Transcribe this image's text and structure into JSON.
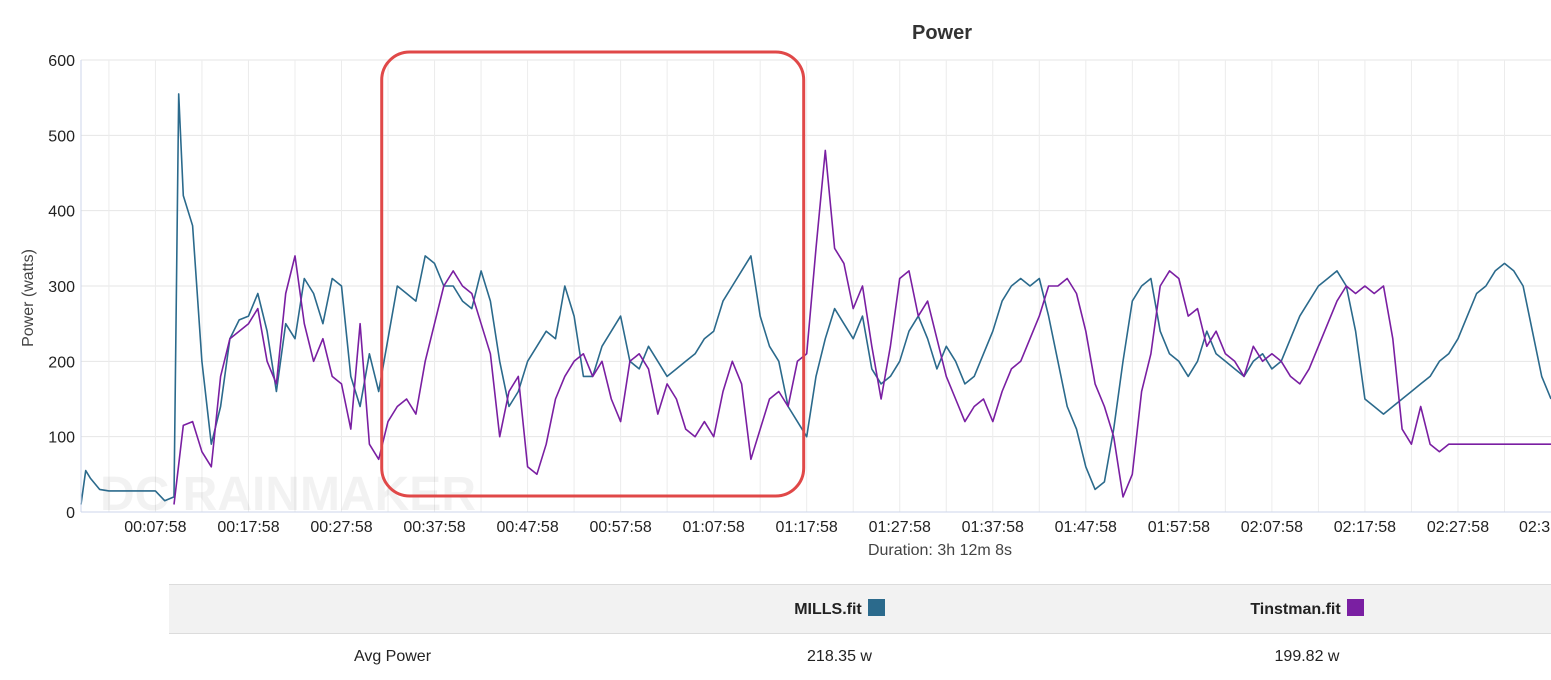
{
  "chart_data": {
    "type": "line",
    "title": "Power",
    "ylabel": "Power (watts)",
    "xlabel": "Duration: 3h 12m 8s",
    "ylim": [
      0,
      600
    ],
    "y_ticks": [
      "0",
      "100",
      "200",
      "300",
      "400",
      "500",
      "600"
    ],
    "x_ticks": [
      "00:07:58",
      "00:17:58",
      "00:27:58",
      "00:37:58",
      "00:47:58",
      "00:57:58",
      "01:07:58",
      "01:17:58",
      "01:27:58",
      "01:37:58",
      "01:47:58",
      "01:57:58",
      "02:07:58",
      "02:17:58",
      "02:27:58",
      "02:3"
    ],
    "x_unit": "minutes",
    "xlim": [
      0,
      158
    ],
    "grid": true,
    "highlight": {
      "x_from": 32,
      "x_to": 78,
      "color": "#e04848"
    },
    "watermark": "DC RAINMAKER",
    "series": [
      {
        "name": "MILLS.fit",
        "color": "#2b6a8c",
        "x": [
          0,
          0.5,
          1,
          2,
          3,
          4,
          5,
          6,
          7,
          8,
          9,
          10,
          10.5,
          11,
          12,
          13,
          14,
          15,
          16,
          17,
          18,
          19,
          20,
          21,
          22,
          23,
          24,
          25,
          26,
          27,
          28,
          29,
          30,
          31,
          32,
          33,
          34,
          35,
          36,
          37,
          38,
          39,
          40,
          41,
          42,
          43,
          44,
          45,
          46,
          47,
          48,
          49,
          50,
          51,
          52,
          53,
          54,
          55,
          56,
          57,
          58,
          59,
          60,
          61,
          62,
          63,
          64,
          65,
          66,
          67,
          68,
          69,
          70,
          71,
          72,
          73,
          74,
          75,
          76,
          77,
          78,
          79,
          80,
          81,
          82,
          83,
          84,
          85,
          86,
          87,
          88,
          89,
          90,
          91,
          92,
          93,
          94,
          95,
          96,
          97,
          98,
          99,
          100,
          101,
          102,
          103,
          104,
          105,
          106,
          107,
          108,
          109,
          110,
          111,
          112,
          113,
          114,
          115,
          116,
          117,
          118,
          119,
          120,
          121,
          122,
          123,
          124,
          125,
          126,
          127,
          128,
          129,
          130,
          131,
          132,
          133,
          134,
          135,
          136,
          137,
          138,
          139,
          140,
          141,
          142,
          143,
          144,
          145,
          146,
          147,
          148,
          149,
          150,
          151,
          152,
          153,
          154,
          155,
          156,
          157,
          158
        ],
        "y": [
          10,
          55,
          45,
          30,
          28,
          28,
          28,
          28,
          28,
          28,
          15,
          20,
          555,
          420,
          380,
          200,
          90,
          140,
          230,
          255,
          260,
          290,
          240,
          160,
          250,
          230,
          310,
          290,
          250,
          310,
          300,
          180,
          140,
          210,
          160,
          230,
          300,
          290,
          280,
          340,
          330,
          300,
          300,
          280,
          270,
          320,
          280,
          200,
          140,
          160,
          200,
          220,
          240,
          230,
          300,
          260,
          180,
          180,
          220,
          240,
          260,
          200,
          190,
          220,
          200,
          180,
          190,
          200,
          210,
          230,
          240,
          280,
          300,
          320,
          340,
          260,
          220,
          200,
          140,
          120,
          100,
          180,
          230,
          270,
          250,
          230,
          260,
          190,
          170,
          180,
          200,
          240,
          260,
          230,
          190,
          220,
          200,
          170,
          180,
          210,
          240,
          280,
          300,
          310,
          300,
          310,
          260,
          200,
          140,
          110,
          60,
          30,
          40,
          110,
          200,
          280,
          300,
          310,
          240,
          210,
          200,
          180,
          200,
          240,
          210,
          200,
          190,
          180,
          200,
          210,
          190,
          200,
          230,
          260,
          280,
          300,
          310,
          320,
          300,
          240,
          150,
          140,
          130,
          140,
          150,
          160,
          170,
          180,
          200,
          210,
          230,
          260,
          290,
          300,
          320,
          330,
          320,
          300,
          240,
          180,
          150
        ]
      },
      {
        "name": "Tinstman.fit",
        "color": "#7a1fa2",
        "x": [
          10,
          11,
          12,
          13,
          14,
          15,
          16,
          17,
          18,
          19,
          20,
          21,
          22,
          23,
          24,
          25,
          26,
          27,
          28,
          29,
          30,
          31,
          32,
          33,
          34,
          35,
          36,
          37,
          38,
          39,
          40,
          41,
          42,
          43,
          44,
          45,
          46,
          47,
          48,
          49,
          50,
          51,
          52,
          53,
          54,
          55,
          56,
          57,
          58,
          59,
          60,
          61,
          62,
          63,
          64,
          65,
          66,
          67,
          68,
          69,
          70,
          71,
          72,
          73,
          74,
          75,
          76,
          77,
          78,
          79,
          80,
          81,
          82,
          83,
          84,
          85,
          86,
          87,
          88,
          89,
          90,
          91,
          92,
          93,
          94,
          95,
          96,
          97,
          98,
          99,
          100,
          101,
          102,
          103,
          104,
          105,
          106,
          107,
          108,
          109,
          110,
          111,
          112,
          113,
          114,
          115,
          116,
          117,
          118,
          119,
          120,
          121,
          122,
          123,
          124,
          125,
          126,
          127,
          128,
          129,
          130,
          131,
          132,
          133,
          134,
          135,
          136,
          137,
          138,
          139,
          140,
          141,
          142,
          143,
          144,
          145,
          146,
          147,
          148,
          149,
          150,
          151,
          152,
          153,
          154,
          155,
          156,
          157,
          158
        ],
        "y": [
          10,
          115,
          120,
          80,
          60,
          180,
          230,
          240,
          250,
          270,
          200,
          170,
          290,
          340,
          250,
          200,
          230,
          180,
          170,
          110,
          250,
          90,
          70,
          120,
          140,
          150,
          130,
          200,
          250,
          300,
          320,
          300,
          290,
          250,
          210,
          100,
          160,
          180,
          60,
          50,
          90,
          150,
          180,
          200,
          210,
          180,
          200,
          150,
          120,
          200,
          210,
          190,
          130,
          170,
          150,
          110,
          100,
          120,
          100,
          160,
          200,
          170,
          70,
          110,
          150,
          160,
          140,
          200,
          210,
          350,
          480,
          350,
          330,
          270,
          300,
          220,
          150,
          220,
          310,
          320,
          260,
          280,
          230,
          180,
          150,
          120,
          140,
          150,
          120,
          160,
          190,
          200,
          230,
          260,
          300,
          300,
          310,
          290,
          240,
          170,
          140,
          100,
          20,
          50,
          160,
          210,
          300,
          320,
          310,
          260,
          270,
          220,
          240,
          210,
          200,
          180,
          220,
          200,
          210,
          200,
          180,
          170,
          190,
          220,
          250,
          280,
          300,
          290,
          300,
          290,
          300,
          230,
          110,
          90,
          140,
          90,
          80,
          90,
          90,
          90,
          90,
          90,
          90,
          90,
          90,
          90,
          90,
          90,
          90
        ]
      }
    ]
  },
  "stats_table": {
    "headers": [
      "",
      "MILLS.fit",
      "Tinstman.fit"
    ],
    "rows": [
      {
        "label": "Avg Power",
        "values": [
          "218.35 w",
          "199.82 w"
        ]
      }
    ]
  }
}
